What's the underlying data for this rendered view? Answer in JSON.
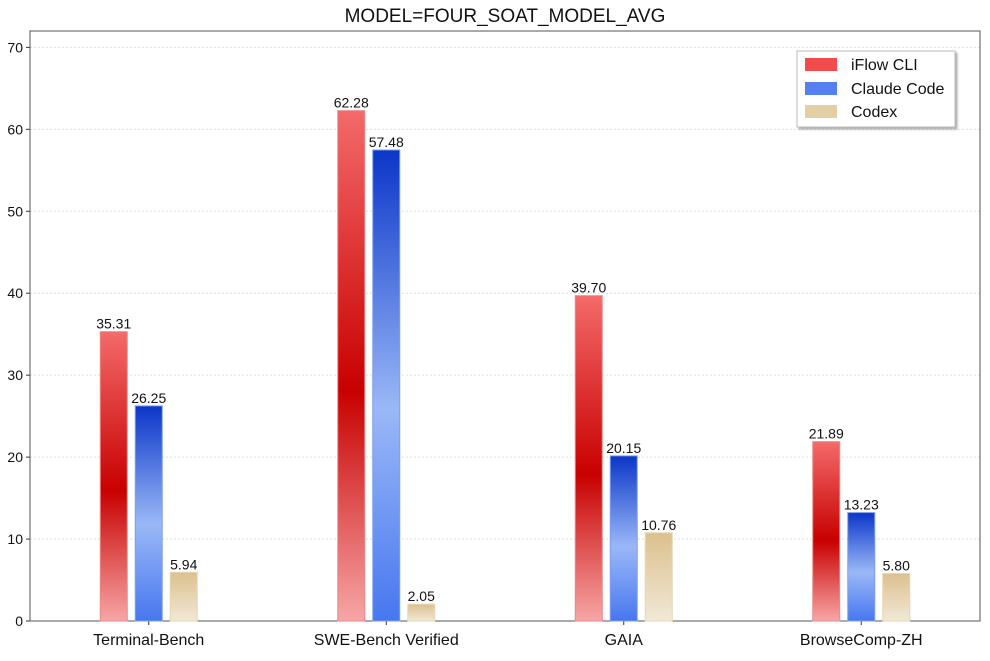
{
  "chart_data": {
    "type": "bar",
    "title": "MODEL=FOUR_SOAT_MODEL_AVG",
    "xlabel": "",
    "ylabel": "",
    "categories": [
      "Terminal-Bench",
      "SWE-Bench Verified",
      "GAIA",
      "BrowseComp-ZH"
    ],
    "series": [
      {
        "name": "iFlow CLI",
        "values": [
          35.31,
          62.28,
          39.7,
          21.89
        ],
        "labels": [
          "35.31",
          "62.28",
          "39.70",
          "21.89"
        ],
        "color": "#e03030"
      },
      {
        "name": "Claude Code",
        "values": [
          26.25,
          57.48,
          20.15,
          13.23
        ],
        "labels": [
          "26.25",
          "57.48",
          "20.15",
          "13.23"
        ],
        "color": "#4a7df0"
      },
      {
        "name": "Codex",
        "values": [
          5.94,
          2.05,
          10.76,
          5.8
        ],
        "labels": [
          "5.94",
          "2.05",
          "10.76",
          "5.80"
        ],
        "color": "#dcc79a"
      }
    ],
    "ylim": [
      0,
      72
    ],
    "yticks": [
      "0",
      "10",
      "20",
      "30",
      "40",
      "50",
      "60",
      "70"
    ],
    "grid": true,
    "legend_position": "top-right"
  }
}
